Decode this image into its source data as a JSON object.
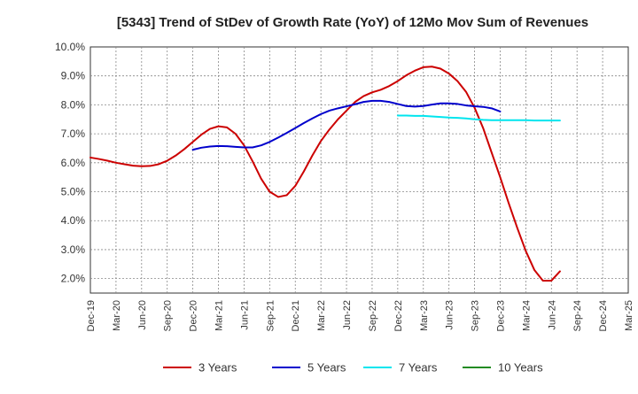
{
  "chart_data": {
    "type": "line",
    "title": "[5343]  Trend of StDev of Growth Rate (YoY) of 12Mo Mov Sum of Revenues",
    "xlabel": "",
    "ylabel": "",
    "ylim": [
      1.5,
      10.0
    ],
    "grid": true,
    "legend_position": "bottom",
    "y_ticks": [
      2.0,
      3.0,
      4.0,
      5.0,
      6.0,
      7.0,
      8.0,
      9.0,
      10.0
    ],
    "y_tick_labels": [
      "2.0%",
      "3.0%",
      "4.0%",
      "5.0%",
      "6.0%",
      "7.0%",
      "8.0%",
      "9.0%",
      "10.0%"
    ],
    "x_tick_labels": [
      "Dec-19",
      "Mar-20",
      "Jun-20",
      "Sep-20",
      "Dec-20",
      "Mar-21",
      "Jun-21",
      "Sep-21",
      "Dec-21",
      "Mar-22",
      "Jun-22",
      "Sep-22",
      "Dec-22",
      "Mar-23",
      "Jun-23",
      "Sep-23",
      "Dec-23",
      "Mar-24",
      "Jun-24",
      "Sep-24",
      "Dec-24",
      "Mar-25"
    ],
    "series": [
      {
        "name": "3 Years",
        "color": "#cc0000",
        "start_index": 0,
        "values": [
          6.18,
          6.13,
          6.07,
          6.0,
          5.95,
          5.9,
          5.88,
          5.89,
          5.95,
          6.07,
          6.25,
          6.47,
          6.72,
          6.97,
          7.17,
          7.26,
          7.22,
          7.0,
          6.6,
          6.05,
          5.45,
          5.0,
          4.82,
          4.88,
          5.2,
          5.7,
          6.25,
          6.75,
          7.15,
          7.5,
          7.8,
          8.1,
          8.3,
          8.43,
          8.52,
          8.65,
          8.82,
          9.02,
          9.18,
          9.3,
          9.32,
          9.25,
          9.08,
          8.82,
          8.45,
          7.9,
          7.2,
          6.35,
          5.5,
          4.6,
          3.75,
          2.95,
          2.3,
          1.93,
          1.93,
          2.25
        ]
      },
      {
        "name": "5 Years",
        "color": "#0000cc",
        "start_index": 12,
        "values": [
          6.45,
          6.52,
          6.56,
          6.58,
          6.57,
          6.55,
          6.53,
          6.53,
          6.6,
          6.72,
          6.87,
          7.03,
          7.2,
          7.37,
          7.53,
          7.68,
          7.8,
          7.88,
          7.95,
          8.02,
          8.1,
          8.14,
          8.14,
          8.1,
          8.03,
          7.96,
          7.94,
          7.96,
          8.01,
          8.05,
          8.05,
          8.03,
          7.98,
          7.95,
          7.93,
          7.88,
          7.77
        ]
      },
      {
        "name": "7 Years",
        "color": "#00e5ee",
        "start_index": 36,
        "values": [
          7.63,
          7.63,
          7.62,
          7.62,
          7.6,
          7.58,
          7.56,
          7.55,
          7.53,
          7.5,
          7.48,
          7.47,
          7.47,
          7.47,
          7.47,
          7.47,
          7.46,
          7.46,
          7.46,
          7.46
        ]
      },
      {
        "name": "10 Years",
        "color": "#228b22",
        "start_index": 0,
        "values": []
      }
    ]
  }
}
